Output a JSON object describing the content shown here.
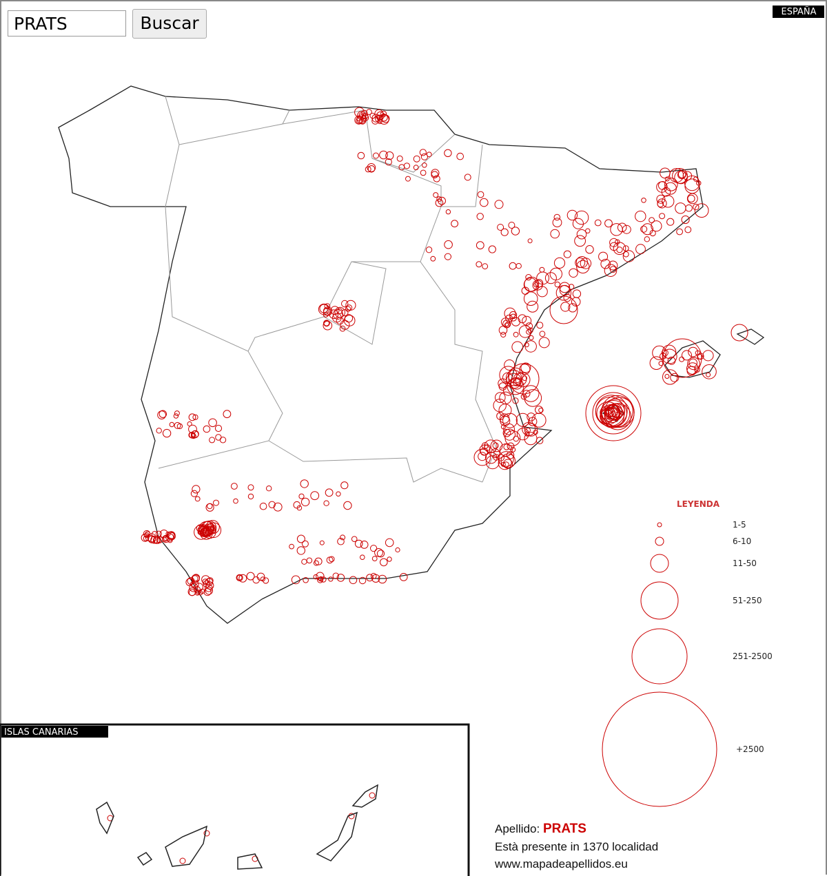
{
  "search": {
    "query": "PRATS",
    "button": "Buscar"
  },
  "map": {
    "label": "ESPAÑA",
    "legend": {
      "title": "LEYENDA",
      "items": [
        "1-5",
        "6-10",
        "11-50",
        "51-250",
        "251-2500",
        "+2500"
      ]
    },
    "inset_label": "ISLAS CANARIAS"
  },
  "info": {
    "surname_label": "Apellido:",
    "surname": "PRATS",
    "presence": "Està presente in 1370 localidad",
    "website": "www.mapadeapellidos.eu"
  }
}
